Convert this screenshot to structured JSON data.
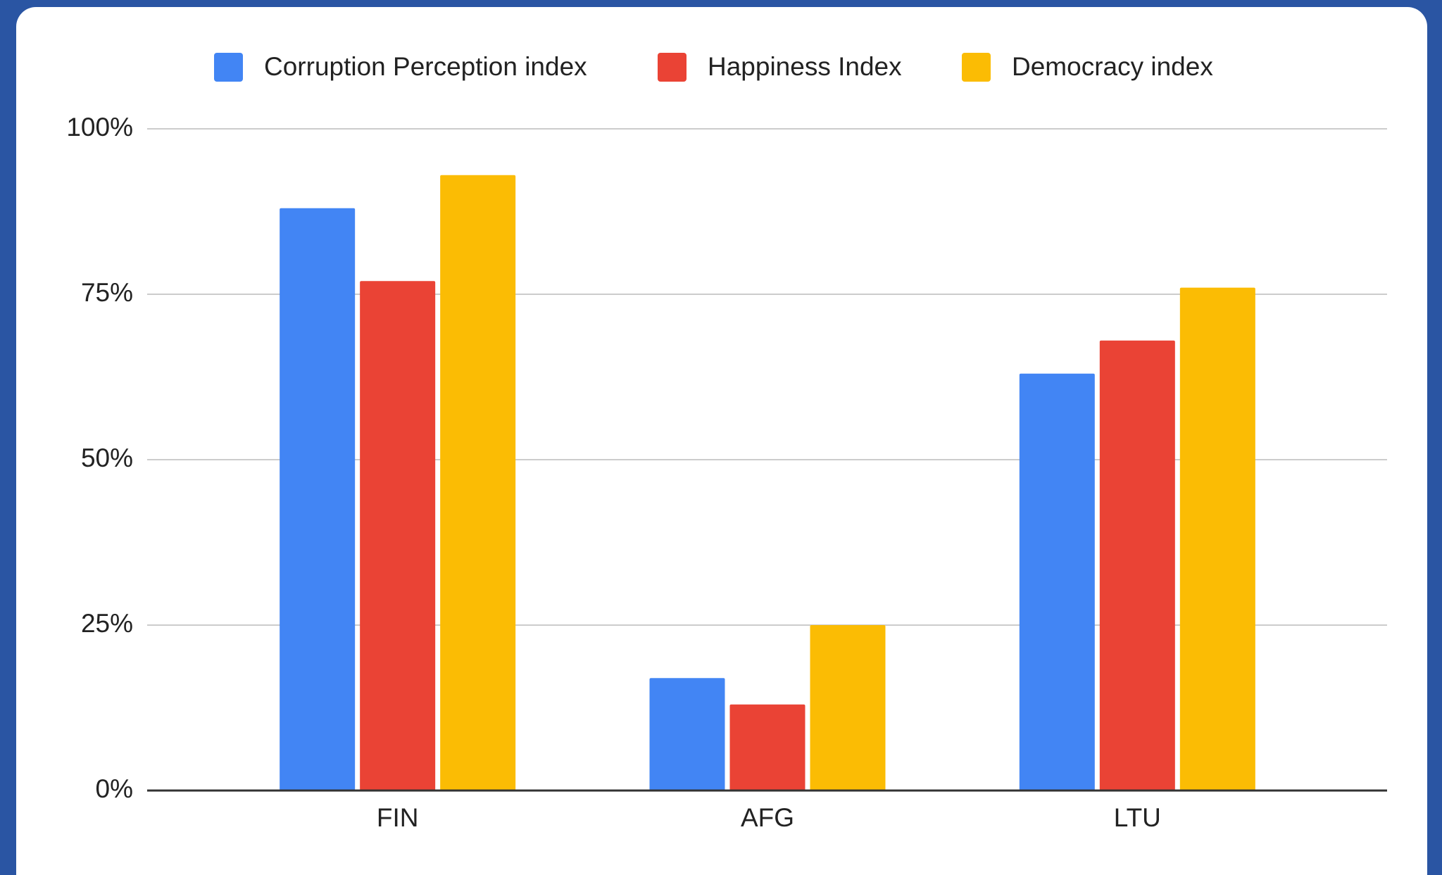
{
  "chart_data": {
    "type": "bar",
    "categories": [
      "FIN",
      "AFG",
      "LTU"
    ],
    "series": [
      {
        "name": "Corruption Perception index",
        "color": "#4285f4",
        "values": [
          88,
          17,
          63
        ]
      },
      {
        "name": "Happiness Index",
        "color": "#ea4335",
        "values": [
          77,
          13,
          68
        ]
      },
      {
        "name": "Democracy index",
        "color": "#fbbc04",
        "values": [
          93,
          25,
          76
        ]
      }
    ],
    "ylim": [
      0,
      100
    ],
    "yticks": [
      {
        "value": 0,
        "label": "0%"
      },
      {
        "value": 25,
        "label": "25%"
      },
      {
        "value": 50,
        "label": "50%"
      },
      {
        "value": 75,
        "label": "75%"
      },
      {
        "value": 100,
        "label": "100%"
      }
    ],
    "grid": true,
    "legend": "top"
  }
}
